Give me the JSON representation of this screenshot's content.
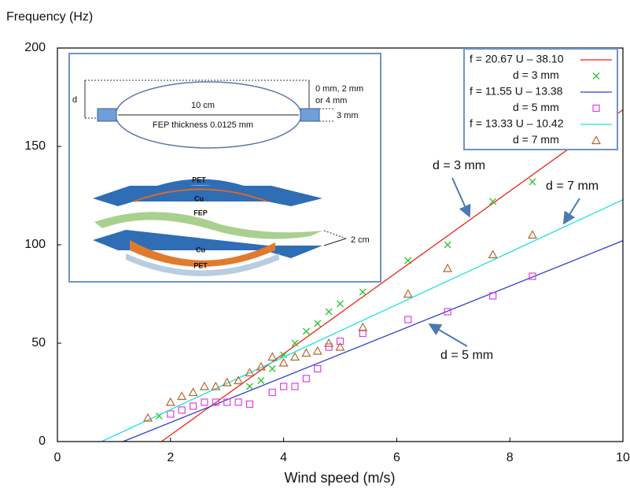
{
  "chart_data": {
    "type": "scatter",
    "y_axis_label": "Frequency (Hz)",
    "x_axis_label": "Wind speed (m/s)",
    "xlim": [
      0,
      10
    ],
    "xticks": [
      0,
      2,
      4,
      6,
      8,
      10
    ],
    "ylim": [
      0,
      200
    ],
    "yticks": [
      0,
      50,
      100,
      150,
      200
    ],
    "series": [
      {
        "name": "f = 20.67 U – 38.10",
        "color": "#e8261a",
        "kind": "line",
        "x": [
          1.84,
          10
        ],
        "values": [
          0,
          168.6
        ]
      },
      {
        "name": "d = 3 mm",
        "color": "#2bc42b",
        "kind": "cross",
        "x": [
          1.8,
          3.4,
          3.6,
          3.8,
          4.0,
          4.2,
          4.4,
          4.6,
          4.8,
          5.0,
          5.4,
          6.2,
          6.9,
          7.7,
          8.4
        ],
        "values": [
          13,
          28,
          31,
          37,
          44,
          50,
          56,
          60,
          66,
          70,
          76,
          92,
          100,
          122,
          132
        ]
      },
      {
        "name": "f = 11.55 U – 13.38",
        "color": "#2b3fd0",
        "kind": "line",
        "x": [
          1.16,
          10
        ],
        "values": [
          0,
          102.1
        ]
      },
      {
        "name": "d = 5 mm",
        "color": "#e040e0",
        "kind": "square",
        "x": [
          2.0,
          2.2,
          2.4,
          2.6,
          2.8,
          3.0,
          3.2,
          3.4,
          3.8,
          4.0,
          4.2,
          4.4,
          4.6,
          4.8,
          5.0,
          5.4,
          6.2,
          6.9,
          7.7,
          8.4
        ],
        "values": [
          14,
          16,
          18,
          20,
          20,
          20,
          20,
          19,
          25,
          28,
          28,
          32,
          37,
          48,
          51,
          55,
          62,
          66,
          74,
          84
        ]
      },
      {
        "name": "f = 13.33 U – 10.42",
        "color": "#1ee0e0",
        "kind": "line",
        "x": [
          0.78,
          10
        ],
        "values": [
          0,
          122.9
        ]
      },
      {
        "name": "d = 7 mm",
        "color": "#b5652a",
        "kind": "triangle",
        "x": [
          1.6,
          2.0,
          2.2,
          2.4,
          2.6,
          2.8,
          3.0,
          3.2,
          3.4,
          3.6,
          3.8,
          4.0,
          4.2,
          4.4,
          4.6,
          4.8,
          5.0,
          5.4,
          6.2,
          6.9,
          7.7,
          8.4
        ],
        "values": [
          12,
          20,
          23,
          25,
          28,
          28,
          30,
          31,
          35,
          38,
          43,
          40,
          43,
          45,
          46,
          50,
          48,
          58,
          75,
          88,
          95,
          105
        ]
      }
    ],
    "annotations": [
      "d = 3 mm",
      "d = 7 mm",
      "d = 5 mm"
    ],
    "inset_labels": [
      "d",
      "10 cm",
      "FEP thickness 0.0125 mm",
      "0 mm, 2 mm",
      "or 4 mm",
      "3 mm",
      "PET",
      "Cu",
      "FEP",
      "Cu",
      "PET",
      "2 cm"
    ]
  }
}
